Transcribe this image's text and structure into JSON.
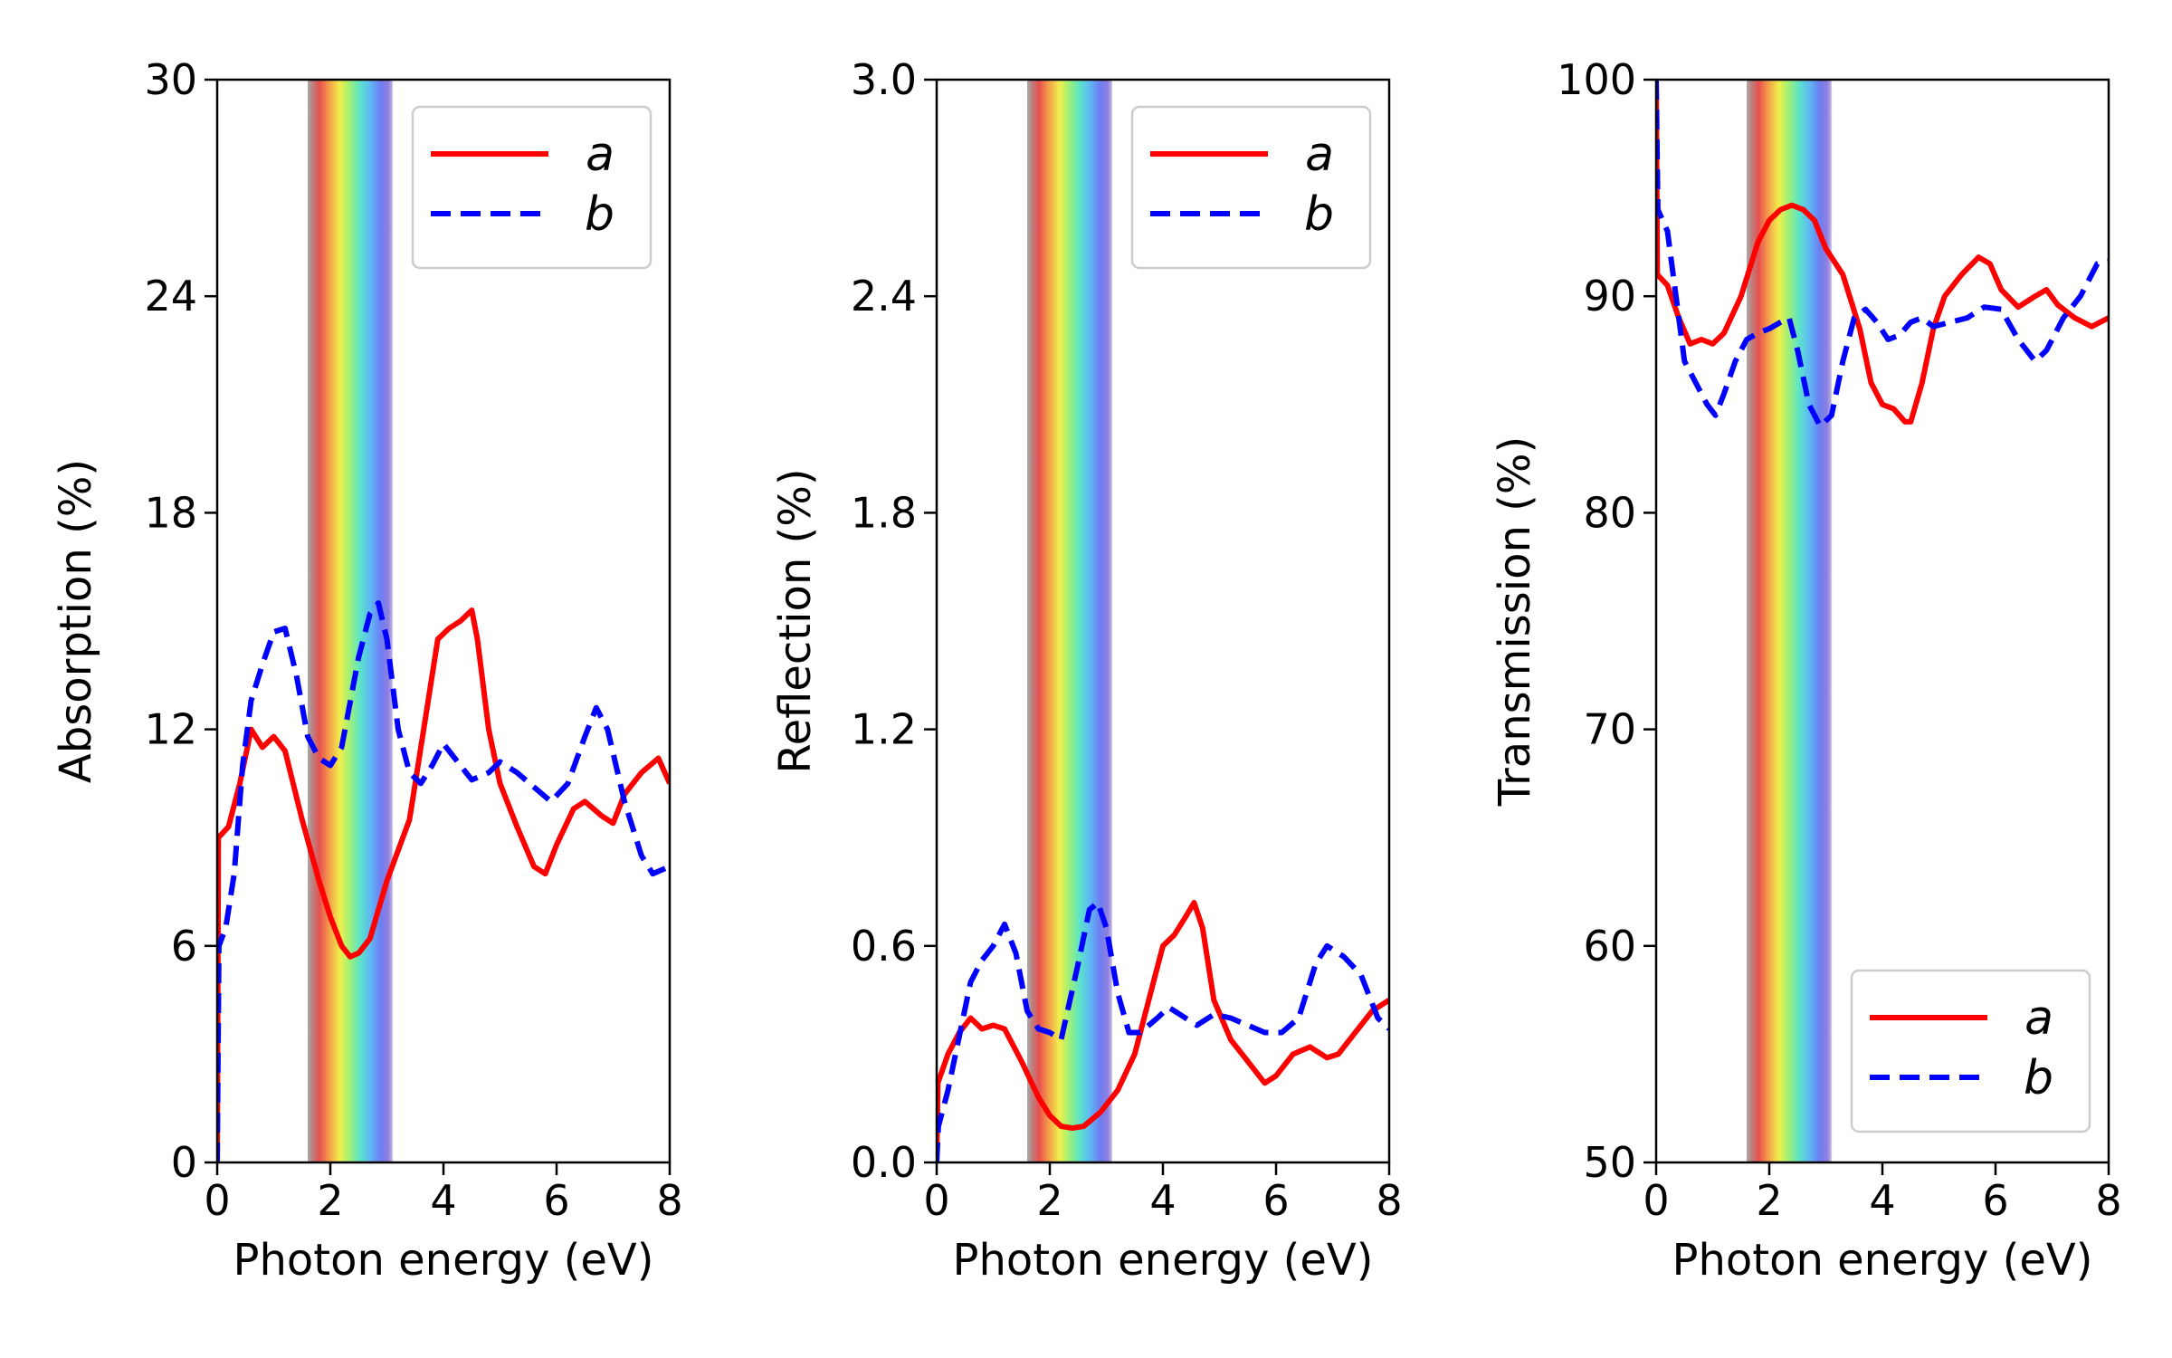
{
  "chart_data": [
    {
      "type": "line",
      "xlabel": "Photon energy (eV)",
      "ylabel": "Absorption (%)",
      "xlim": [
        0,
        8
      ],
      "ylim": [
        0,
        30
      ],
      "xticks": [
        0,
        2,
        4,
        6,
        8
      ],
      "yticks": [
        0,
        6,
        12,
        18,
        24,
        30
      ],
      "ytick_labels": [
        "0",
        "6",
        "12",
        "18",
        "24",
        "30"
      ],
      "legend": "top-right",
      "visible_band_eV": [
        1.6,
        3.1
      ],
      "series": [
        {
          "name": "a",
          "color": "#ff0000",
          "style": "solid",
          "points": [
            [
              0,
              0
            ],
            [
              0.02,
              9
            ],
            [
              0.2,
              9.3
            ],
            [
              0.4,
              10.5
            ],
            [
              0.6,
              12
            ],
            [
              0.8,
              11.5
            ],
            [
              1.0,
              11.8
            ],
            [
              1.2,
              11.4
            ],
            [
              1.5,
              9.5
            ],
            [
              1.8,
              7.8
            ],
            [
              2.0,
              6.8
            ],
            [
              2.2,
              6
            ],
            [
              2.35,
              5.7
            ],
            [
              2.5,
              5.8
            ],
            [
              2.7,
              6.2
            ],
            [
              3.0,
              7.8
            ],
            [
              3.4,
              9.5
            ],
            [
              3.7,
              12.5
            ],
            [
              3.9,
              14.5
            ],
            [
              4.1,
              14.8
            ],
            [
              4.3,
              15
            ],
            [
              4.5,
              15.3
            ],
            [
              4.6,
              14.5
            ],
            [
              4.8,
              12
            ],
            [
              5.0,
              10.5
            ],
            [
              5.3,
              9.3
            ],
            [
              5.6,
              8.2
            ],
            [
              5.8,
              8.0
            ],
            [
              6.0,
              8.8
            ],
            [
              6.3,
              9.8
            ],
            [
              6.5,
              10
            ],
            [
              6.8,
              9.6
            ],
            [
              7.0,
              9.4
            ],
            [
              7.2,
              10.2
            ],
            [
              7.5,
              10.8
            ],
            [
              7.8,
              11.2
            ],
            [
              8.0,
              10.5
            ]
          ]
        },
        {
          "name": "b",
          "color": "#0000ff",
          "style": "dashed",
          "points": [
            [
              0,
              0
            ],
            [
              0.03,
              6
            ],
            [
              0.15,
              6.5
            ],
            [
              0.3,
              8
            ],
            [
              0.45,
              11
            ],
            [
              0.6,
              12.8
            ],
            [
              0.8,
              13.8
            ],
            [
              1.0,
              14.7
            ],
            [
              1.2,
              14.8
            ],
            [
              1.4,
              13.5
            ],
            [
              1.6,
              11.8
            ],
            [
              1.8,
              11.2
            ],
            [
              2.0,
              11
            ],
            [
              2.2,
              11.5
            ],
            [
              2.5,
              14
            ],
            [
              2.7,
              15.2
            ],
            [
              2.85,
              15.5
            ],
            [
              3.0,
              14.5
            ],
            [
              3.2,
              12
            ],
            [
              3.4,
              10.8
            ],
            [
              3.6,
              10.5
            ],
            [
              3.8,
              11
            ],
            [
              4.0,
              11.6
            ],
            [
              4.2,
              11.2
            ],
            [
              4.5,
              10.6
            ],
            [
              4.8,
              10.8
            ],
            [
              5.0,
              11.1
            ],
            [
              5.3,
              10.8
            ],
            [
              5.6,
              10.4
            ],
            [
              5.9,
              10
            ],
            [
              6.2,
              10.5
            ],
            [
              6.5,
              11.8
            ],
            [
              6.7,
              12.6
            ],
            [
              6.9,
              12
            ],
            [
              7.2,
              10
            ],
            [
              7.5,
              8.5
            ],
            [
              7.7,
              8
            ],
            [
              8.0,
              8.2
            ]
          ]
        }
      ]
    },
    {
      "type": "line",
      "xlabel": "Photon energy (eV)",
      "ylabel": "Reflection (%)",
      "xlim": [
        0,
        8
      ],
      "ylim": [
        0,
        3
      ],
      "xticks": [
        0,
        2,
        4,
        6,
        8
      ],
      "yticks": [
        0,
        0.6,
        1.2,
        1.8,
        2.4,
        3.0
      ],
      "ytick_labels": [
        "0.0",
        "0.6",
        "1.2",
        "1.8",
        "2.4",
        "3.0"
      ],
      "legend": "top-right",
      "visible_band_eV": [
        1.6,
        3.1
      ],
      "series": [
        {
          "name": "a",
          "color": "#ff0000",
          "style": "solid",
          "points": [
            [
              0,
              0
            ],
            [
              0.02,
              0.22
            ],
            [
              0.2,
              0.3
            ],
            [
              0.4,
              0.36
            ],
            [
              0.6,
              0.4
            ],
            [
              0.8,
              0.37
            ],
            [
              1.0,
              0.38
            ],
            [
              1.2,
              0.37
            ],
            [
              1.5,
              0.28
            ],
            [
              1.8,
              0.18
            ],
            [
              2.0,
              0.13
            ],
            [
              2.2,
              0.1
            ],
            [
              2.4,
              0.095
            ],
            [
              2.6,
              0.1
            ],
            [
              2.9,
              0.14
            ],
            [
              3.2,
              0.2
            ],
            [
              3.5,
              0.3
            ],
            [
              3.8,
              0.48
            ],
            [
              4.0,
              0.6
            ],
            [
              4.2,
              0.63
            ],
            [
              4.4,
              0.68
            ],
            [
              4.55,
              0.72
            ],
            [
              4.7,
              0.65
            ],
            [
              4.9,
              0.45
            ],
            [
              5.2,
              0.34
            ],
            [
              5.5,
              0.28
            ],
            [
              5.8,
              0.22
            ],
            [
              6.0,
              0.24
            ],
            [
              6.3,
              0.3
            ],
            [
              6.6,
              0.32
            ],
            [
              6.9,
              0.29
            ],
            [
              7.1,
              0.3
            ],
            [
              7.4,
              0.36
            ],
            [
              7.7,
              0.42
            ],
            [
              8.0,
              0.45
            ]
          ]
        },
        {
          "name": "b",
          "color": "#0000ff",
          "style": "dashed",
          "points": [
            [
              0,
              0
            ],
            [
              0.03,
              0.1
            ],
            [
              0.2,
              0.2
            ],
            [
              0.4,
              0.35
            ],
            [
              0.6,
              0.5
            ],
            [
              0.8,
              0.56
            ],
            [
              1.0,
              0.6
            ],
            [
              1.2,
              0.66
            ],
            [
              1.4,
              0.58
            ],
            [
              1.6,
              0.42
            ],
            [
              1.8,
              0.37
            ],
            [
              2.0,
              0.36
            ],
            [
              2.2,
              0.34
            ],
            [
              2.5,
              0.55
            ],
            [
              2.7,
              0.7
            ],
            [
              2.85,
              0.72
            ],
            [
              3.0,
              0.65
            ],
            [
              3.2,
              0.47
            ],
            [
              3.4,
              0.36
            ],
            [
              3.6,
              0.36
            ],
            [
              3.9,
              0.4
            ],
            [
              4.1,
              0.43
            ],
            [
              4.4,
              0.4
            ],
            [
              4.6,
              0.38
            ],
            [
              4.9,
              0.41
            ],
            [
              5.2,
              0.4
            ],
            [
              5.5,
              0.38
            ],
            [
              5.8,
              0.36
            ],
            [
              6.1,
              0.36
            ],
            [
              6.4,
              0.4
            ],
            [
              6.7,
              0.55
            ],
            [
              6.9,
              0.6
            ],
            [
              7.2,
              0.57
            ],
            [
              7.5,
              0.52
            ],
            [
              7.8,
              0.4
            ],
            [
              8.0,
              0.37
            ]
          ]
        }
      ]
    },
    {
      "type": "line",
      "xlabel": "Photon energy (eV)",
      "ylabel": "Transmission (%)",
      "xlim": [
        0,
        8
      ],
      "ylim": [
        50,
        100
      ],
      "xticks": [
        0,
        2,
        4,
        6,
        8
      ],
      "yticks": [
        50,
        60,
        70,
        80,
        90,
        100
      ],
      "ytick_labels": [
        "50",
        "60",
        "70",
        "80",
        "90",
        "100"
      ],
      "legend": "bottom-right",
      "visible_band_eV": [
        1.6,
        3.1
      ],
      "series": [
        {
          "name": "a",
          "color": "#ff0000",
          "style": "solid",
          "points": [
            [
              0,
              100
            ],
            [
              0.02,
              91
            ],
            [
              0.2,
              90.5
            ],
            [
              0.4,
              89
            ],
            [
              0.6,
              87.8
            ],
            [
              0.8,
              88
            ],
            [
              1.0,
              87.8
            ],
            [
              1.2,
              88.3
            ],
            [
              1.5,
              90
            ],
            [
              1.8,
              92.5
            ],
            [
              2.0,
              93.5
            ],
            [
              2.2,
              94
            ],
            [
              2.4,
              94.2
            ],
            [
              2.6,
              94
            ],
            [
              2.8,
              93.5
            ],
            [
              3.0,
              92.2
            ],
            [
              3.3,
              91
            ],
            [
              3.6,
              88.5
            ],
            [
              3.8,
              86
            ],
            [
              4.0,
              85
            ],
            [
              4.2,
              84.8
            ],
            [
              4.4,
              84.2
            ],
            [
              4.5,
              84.2
            ],
            [
              4.7,
              86
            ],
            [
              4.9,
              88.5
            ],
            [
              5.1,
              90
            ],
            [
              5.4,
              91
            ],
            [
              5.7,
              91.8
            ],
            [
              5.9,
              91.5
            ],
            [
              6.1,
              90.3
            ],
            [
              6.4,
              89.5
            ],
            [
              6.7,
              90
            ],
            [
              6.9,
              90.3
            ],
            [
              7.1,
              89.6
            ],
            [
              7.4,
              89
            ],
            [
              7.7,
              88.6
            ],
            [
              8.0,
              89
            ]
          ]
        },
        {
          "name": "b",
          "color": "#0000ff",
          "style": "dashed",
          "points": [
            [
              0,
              100
            ],
            [
              0.03,
              94
            ],
            [
              0.2,
              93
            ],
            [
              0.35,
              90
            ],
            [
              0.5,
              87
            ],
            [
              0.7,
              86
            ],
            [
              0.9,
              85
            ],
            [
              1.05,
              84.5
            ],
            [
              1.2,
              85.5
            ],
            [
              1.4,
              87
            ],
            [
              1.6,
              88
            ],
            [
              1.8,
              88.3
            ],
            [
              2.0,
              88.5
            ],
            [
              2.2,
              88.8
            ],
            [
              2.35,
              89
            ],
            [
              2.5,
              87.5
            ],
            [
              2.7,
              85
            ],
            [
              2.9,
              84
            ],
            [
              3.1,
              84.5
            ],
            [
              3.3,
              87
            ],
            [
              3.5,
              89
            ],
            [
              3.7,
              89.4
            ],
            [
              3.9,
              88.8
            ],
            [
              4.1,
              88
            ],
            [
              4.3,
              88.2
            ],
            [
              4.5,
              88.8
            ],
            [
              4.7,
              89
            ],
            [
              4.9,
              88.6
            ],
            [
              5.2,
              88.8
            ],
            [
              5.5,
              89
            ],
            [
              5.8,
              89.5
            ],
            [
              6.1,
              89.4
            ],
            [
              6.4,
              88
            ],
            [
              6.7,
              87
            ],
            [
              6.9,
              87.5
            ],
            [
              7.2,
              89
            ],
            [
              7.5,
              90
            ],
            [
              7.8,
              91.5
            ],
            [
              8.0,
              91.6
            ]
          ]
        }
      ]
    }
  ]
}
